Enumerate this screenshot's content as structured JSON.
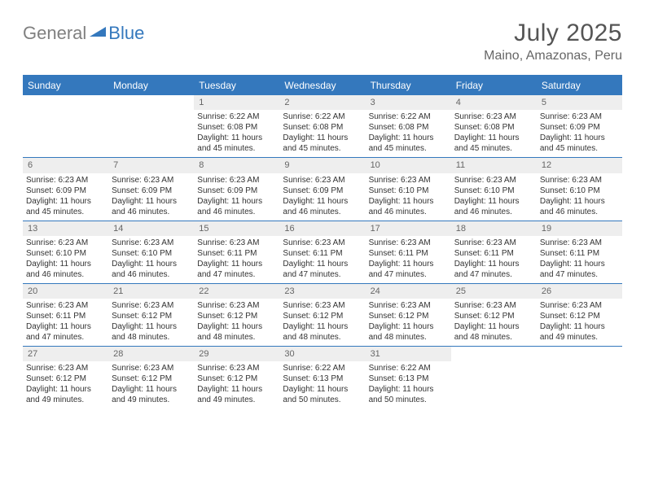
{
  "logo": {
    "general": "General",
    "blue": "Blue"
  },
  "title": "July 2025",
  "location": "Maino, Amazonas, Peru",
  "colors": {
    "accent": "#3478bd",
    "header_bg": "#3478bd",
    "header_text": "#ffffff",
    "daynum_bg": "#eeeeee",
    "daynum_text": "#666666",
    "body_text": "#333333",
    "logo_gray": "#808080",
    "logo_blue": "#3478bd",
    "title_color": "#555555"
  },
  "weekdays": [
    "Sunday",
    "Monday",
    "Tuesday",
    "Wednesday",
    "Thursday",
    "Friday",
    "Saturday"
  ],
  "weeks": [
    [
      null,
      null,
      {
        "n": "1",
        "sr": "6:22 AM",
        "ss": "6:08 PM",
        "dl": "11 hours and 45 minutes."
      },
      {
        "n": "2",
        "sr": "6:22 AM",
        "ss": "6:08 PM",
        "dl": "11 hours and 45 minutes."
      },
      {
        "n": "3",
        "sr": "6:22 AM",
        "ss": "6:08 PM",
        "dl": "11 hours and 45 minutes."
      },
      {
        "n": "4",
        "sr": "6:23 AM",
        "ss": "6:08 PM",
        "dl": "11 hours and 45 minutes."
      },
      {
        "n": "5",
        "sr": "6:23 AM",
        "ss": "6:09 PM",
        "dl": "11 hours and 45 minutes."
      }
    ],
    [
      {
        "n": "6",
        "sr": "6:23 AM",
        "ss": "6:09 PM",
        "dl": "11 hours and 45 minutes."
      },
      {
        "n": "7",
        "sr": "6:23 AM",
        "ss": "6:09 PM",
        "dl": "11 hours and 46 minutes."
      },
      {
        "n": "8",
        "sr": "6:23 AM",
        "ss": "6:09 PM",
        "dl": "11 hours and 46 minutes."
      },
      {
        "n": "9",
        "sr": "6:23 AM",
        "ss": "6:09 PM",
        "dl": "11 hours and 46 minutes."
      },
      {
        "n": "10",
        "sr": "6:23 AM",
        "ss": "6:10 PM",
        "dl": "11 hours and 46 minutes."
      },
      {
        "n": "11",
        "sr": "6:23 AM",
        "ss": "6:10 PM",
        "dl": "11 hours and 46 minutes."
      },
      {
        "n": "12",
        "sr": "6:23 AM",
        "ss": "6:10 PM",
        "dl": "11 hours and 46 minutes."
      }
    ],
    [
      {
        "n": "13",
        "sr": "6:23 AM",
        "ss": "6:10 PM",
        "dl": "11 hours and 46 minutes."
      },
      {
        "n": "14",
        "sr": "6:23 AM",
        "ss": "6:10 PM",
        "dl": "11 hours and 46 minutes."
      },
      {
        "n": "15",
        "sr": "6:23 AM",
        "ss": "6:11 PM",
        "dl": "11 hours and 47 minutes."
      },
      {
        "n": "16",
        "sr": "6:23 AM",
        "ss": "6:11 PM",
        "dl": "11 hours and 47 minutes."
      },
      {
        "n": "17",
        "sr": "6:23 AM",
        "ss": "6:11 PM",
        "dl": "11 hours and 47 minutes."
      },
      {
        "n": "18",
        "sr": "6:23 AM",
        "ss": "6:11 PM",
        "dl": "11 hours and 47 minutes."
      },
      {
        "n": "19",
        "sr": "6:23 AM",
        "ss": "6:11 PM",
        "dl": "11 hours and 47 minutes."
      }
    ],
    [
      {
        "n": "20",
        "sr": "6:23 AM",
        "ss": "6:11 PM",
        "dl": "11 hours and 47 minutes."
      },
      {
        "n": "21",
        "sr": "6:23 AM",
        "ss": "6:12 PM",
        "dl": "11 hours and 48 minutes."
      },
      {
        "n": "22",
        "sr": "6:23 AM",
        "ss": "6:12 PM",
        "dl": "11 hours and 48 minutes."
      },
      {
        "n": "23",
        "sr": "6:23 AM",
        "ss": "6:12 PM",
        "dl": "11 hours and 48 minutes."
      },
      {
        "n": "24",
        "sr": "6:23 AM",
        "ss": "6:12 PM",
        "dl": "11 hours and 48 minutes."
      },
      {
        "n": "25",
        "sr": "6:23 AM",
        "ss": "6:12 PM",
        "dl": "11 hours and 48 minutes."
      },
      {
        "n": "26",
        "sr": "6:23 AM",
        "ss": "6:12 PM",
        "dl": "11 hours and 49 minutes."
      }
    ],
    [
      {
        "n": "27",
        "sr": "6:23 AM",
        "ss": "6:12 PM",
        "dl": "11 hours and 49 minutes."
      },
      {
        "n": "28",
        "sr": "6:23 AM",
        "ss": "6:12 PM",
        "dl": "11 hours and 49 minutes."
      },
      {
        "n": "29",
        "sr": "6:23 AM",
        "ss": "6:12 PM",
        "dl": "11 hours and 49 minutes."
      },
      {
        "n": "30",
        "sr": "6:22 AM",
        "ss": "6:13 PM",
        "dl": "11 hours and 50 minutes."
      },
      {
        "n": "31",
        "sr": "6:22 AM",
        "ss": "6:13 PM",
        "dl": "11 hours and 50 minutes."
      },
      null,
      null
    ]
  ],
  "labels": {
    "sunrise": "Sunrise:",
    "sunset": "Sunset:",
    "daylight": "Daylight:"
  }
}
